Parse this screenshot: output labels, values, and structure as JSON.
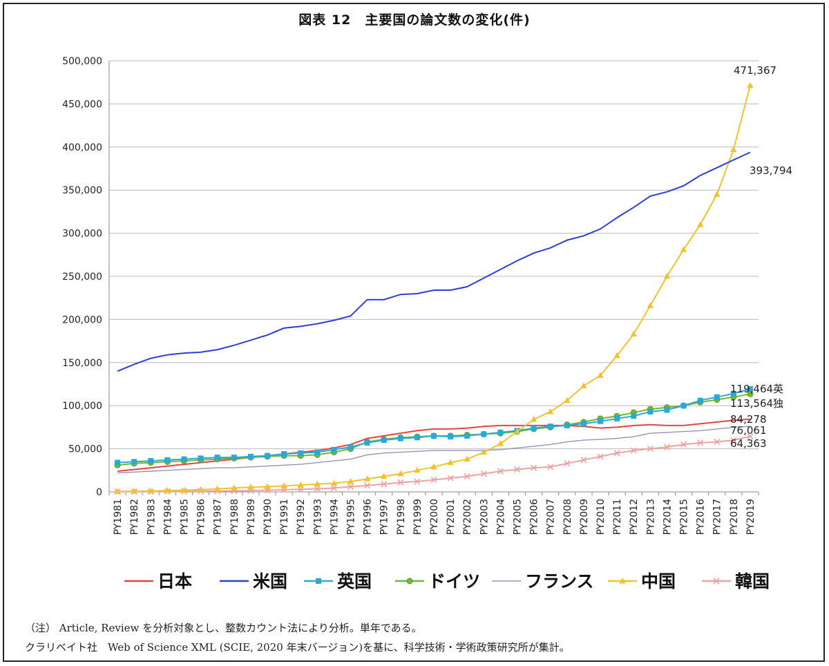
{
  "title": "図表 12　主要国の論文数の変化(件)",
  "notes": {
    "line1": "（注） Article, Review を分析対象とし、整数カウント法により分析。単年である。",
    "line2": "クラリベイト社　Web of Science XML (SCIE, 2020 年末バージョン)を基に、科学技術・学術政策研究所が集計。"
  },
  "chart_data": {
    "type": "line",
    "title": "図表 12　主要国の論文数の変化(件)",
    "ylim": [
      0,
      500000
    ],
    "yticks": [
      0,
      50000,
      100000,
      150000,
      200000,
      250000,
      300000,
      350000,
      400000,
      450000,
      500000
    ],
    "ytick_labels": [
      "0",
      "50,000",
      "100,000",
      "150,000",
      "200,000",
      "250,000",
      "300,000",
      "350,000",
      "400,000",
      "450,000",
      "500,000"
    ],
    "categories": [
      "PY1981",
      "PY1982",
      "PY1983",
      "PY1984",
      "PY1985",
      "PY1986",
      "PY1987",
      "PY1988",
      "PY1989",
      "PY1990",
      "PY1991",
      "PY1992",
      "PY1993",
      "PY1994",
      "PY1995",
      "PY1996",
      "PY1997",
      "PY1998",
      "PY1999",
      "PY2000",
      "PY2001",
      "PY2002",
      "PY2003",
      "PY2004",
      "PY2005",
      "PY2006",
      "PY2007",
      "PY2008",
      "PY2009",
      "PY2010",
      "PY2011",
      "PY2012",
      "PY2013",
      "PY2014",
      "PY2015",
      "PY2016",
      "PY2017",
      "PY2018",
      "PY2019"
    ],
    "series": [
      {
        "name": "日本",
        "color": "#e8423c",
        "marker": "none",
        "values": [
          24000,
          26000,
          28000,
          30000,
          32000,
          34000,
          36000,
          38000,
          40000,
          42000,
          44000,
          46000,
          48000,
          51000,
          55000,
          62000,
          65000,
          68000,
          71000,
          73000,
          73000,
          74000,
          76000,
          77000,
          77000,
          77000,
          77000,
          77000,
          76000,
          74000,
          75000,
          77000,
          78000,
          77000,
          77000,
          79000,
          81000,
          83000,
          84278
        ]
      },
      {
        "name": "米国",
        "color": "#2b3fd6",
        "marker": "none",
        "values": [
          140000,
          148000,
          155000,
          159000,
          161000,
          162000,
          165000,
          170000,
          176000,
          182000,
          190000,
          192000,
          195000,
          199000,
          204000,
          223000,
          223000,
          229000,
          230000,
          234000,
          234000,
          238000,
          248000,
          258000,
          268000,
          277000,
          283000,
          292000,
          297000,
          305000,
          318000,
          330000,
          343000,
          348000,
          355000,
          367000,
          376000,
          385000,
          393794
        ]
      },
      {
        "name": "英国",
        "color": "#2aa8d8",
        "marker": "square",
        "values": [
          34000,
          35000,
          36000,
          37000,
          38000,
          39000,
          40000,
          40000,
          41000,
          42000,
          44000,
          45000,
          46000,
          49000,
          52000,
          57000,
          60000,
          62000,
          63000,
          65000,
          64000,
          65000,
          67000,
          69000,
          71000,
          74000,
          76000,
          77000,
          79000,
          82000,
          85000,
          88000,
          93000,
          95000,
          100000,
          106000,
          110000,
          114000,
          119464
        ]
      },
      {
        "name": "ドイツ",
        "color": "#6fb830",
        "marker": "circle",
        "values": [
          31000,
          33000,
          34000,
          35000,
          36000,
          37000,
          38000,
          39000,
          40000,
          41000,
          42000,
          42000,
          43000,
          46000,
          50000,
          58000,
          61000,
          63000,
          64000,
          65000,
          65000,
          66000,
          67000,
          68000,
          70000,
          73000,
          75000,
          78000,
          81000,
          85000,
          88000,
          92000,
          96000,
          98000,
          100000,
          104000,
          107000,
          110000,
          113564
        ]
      },
      {
        "name": "フランス",
        "color": "#9a90b8",
        "marker": "none",
        "values": [
          22000,
          23000,
          24000,
          25000,
          26000,
          27000,
          28000,
          28000,
          29000,
          30000,
          31000,
          32000,
          34000,
          36000,
          38000,
          43000,
          45000,
          46000,
          47000,
          48000,
          48000,
          48000,
          48000,
          49000,
          51000,
          53000,
          55000,
          58000,
          60000,
          61000,
          62000,
          64000,
          68000,
          69000,
          70000,
          71000,
          73000,
          75000,
          76061
        ]
      },
      {
        "name": "中国",
        "color": "#f2c22a",
        "marker": "triangle",
        "values": [
          500,
          800,
          1000,
          1500,
          2000,
          2500,
          3500,
          4500,
          5500,
          6000,
          7000,
          8000,
          9000,
          10000,
          12000,
          15000,
          18000,
          21000,
          25000,
          29000,
          34000,
          38000,
          46000,
          56000,
          70000,
          84000,
          93000,
          106000,
          123000,
          135000,
          158000,
          183000,
          216000,
          250000,
          281000,
          310000,
          345000,
          397000,
          471367
        ]
      },
      {
        "name": "韓国",
        "color": "#f0a0a0",
        "marker": "x",
        "values": [
          200,
          300,
          400,
          500,
          600,
          800,
          1000,
          1200,
          1500,
          2000,
          2500,
          3000,
          3500,
          4500,
          6000,
          7500,
          9000,
          11000,
          12000,
          14000,
          16000,
          18000,
          21000,
          24000,
          26000,
          28000,
          29000,
          33000,
          37000,
          41000,
          45000,
          48000,
          50000,
          52000,
          55000,
          57000,
          58000,
          60000,
          64363
        ]
      }
    ],
    "annotations": {
      "china": "471,367",
      "usa": "393,794",
      "uk": "119,464英",
      "germany": "113,564独",
      "japan": "84,278",
      "france": "76,061",
      "korea": "64,363"
    },
    "legend_position": "bottom",
    "grid": true
  }
}
